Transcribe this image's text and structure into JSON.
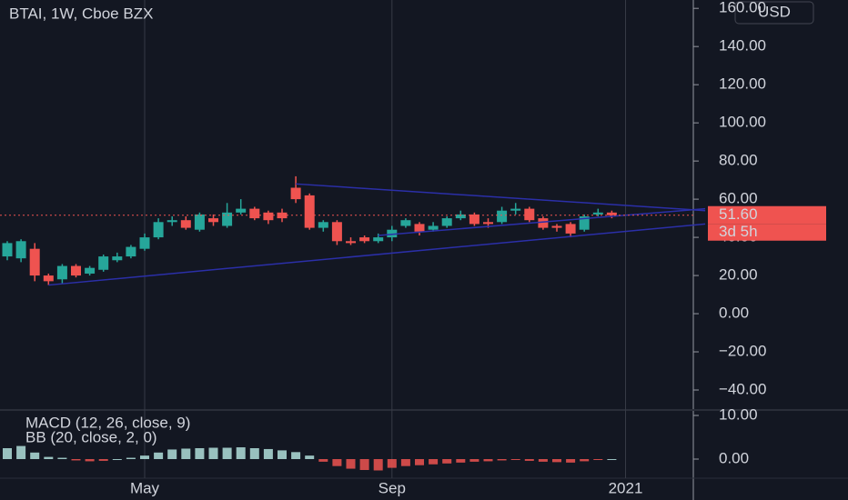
{
  "chart_data": {
    "type": "candlestick",
    "title": "BTAI, 1W, Cboe BZX",
    "currency_button": "USD",
    "up_color": "#26a69a",
    "down_color": "#ef5350",
    "categories": [
      null,
      null,
      null,
      null,
      null,
      null,
      null,
      null,
      null,
      null,
      null,
      null,
      null,
      null,
      null,
      null,
      null,
      null,
      null,
      null,
      null,
      null,
      null,
      null,
      null,
      null,
      null,
      null,
      null,
      null,
      null,
      null,
      null,
      null,
      null,
      null,
      null,
      null,
      null,
      null,
      null,
      null,
      null,
      null,
      null
    ],
    "open": [
      30,
      29,
      34,
      20,
      18,
      25,
      21,
      23,
      28,
      30,
      34,
      40,
      48,
      49,
      44,
      50,
      46,
      53,
      55,
      53,
      53,
      66,
      62,
      45,
      48,
      38,
      40,
      38,
      40,
      46,
      47,
      44,
      46,
      50,
      52,
      48,
      48,
      54,
      55,
      50,
      46,
      47,
      44,
      52,
      53
    ],
    "high": [
      38,
      39,
      37,
      21,
      26,
      26,
      25,
      31,
      32,
      36,
      42,
      50,
      51,
      51,
      53,
      52,
      58,
      60,
      56,
      54,
      55,
      72,
      63,
      49,
      49,
      40,
      41,
      42,
      46,
      50,
      48,
      48,
      51,
      54,
      53,
      50,
      56,
      58,
      56,
      51,
      47,
      48,
      52,
      55,
      54
    ],
    "low": [
      28,
      27,
      17,
      15,
      16,
      19,
      20,
      22,
      27,
      29,
      33,
      39,
      46,
      44,
      43,
      46,
      45,
      52,
      49,
      47,
      48,
      58,
      44,
      43,
      36,
      36,
      37,
      37,
      38,
      45,
      41,
      43,
      45,
      49,
      46,
      45,
      47,
      52,
      48,
      44,
      43,
      40,
      43,
      51,
      50
    ],
    "close": [
      37,
      38,
      20,
      17,
      25,
      20,
      24,
      30,
      30,
      35,
      40,
      48,
      49,
      45,
      52,
      48,
      53,
      55,
      50,
      49,
      50,
      60,
      45,
      48,
      38,
      37,
      38,
      40,
      44,
      49,
      43,
      46,
      50,
      52,
      47,
      47,
      54,
      55,
      49,
      45,
      45,
      42,
      51,
      53,
      51.6
    ],
    "ylim": [
      -50,
      162
    ],
    "yticks": [
      {
        "value": 160,
        "label": "160.00"
      },
      {
        "value": 140,
        "label": "140.00"
      },
      {
        "value": 120,
        "label": "120.00"
      },
      {
        "value": 100,
        "label": "100.00"
      },
      {
        "value": 80,
        "label": "80.00"
      },
      {
        "value": 60,
        "label": "60.00"
      },
      {
        "value": 40,
        "label": "40.00"
      },
      {
        "value": 20,
        "label": "20.00"
      },
      {
        "value": 0,
        "label": "0.00"
      },
      {
        "value": -20,
        "label": "−20.00"
      },
      {
        "value": -40,
        "label": "−40.00"
      }
    ],
    "xticks": [
      {
        "value": 10,
        "label": "May"
      },
      {
        "value": 28,
        "label": "Sep"
      },
      {
        "value": 45,
        "label": "2021"
      }
    ],
    "last_price": {
      "value": 51.6,
      "label": "51.60"
    },
    "countdown": "3d 5h",
    "trendline_color": "#2b2fa8",
    "trendlines": [
      {
        "x": [
          3,
          50.8
        ],
        "y": [
          15,
          47
        ]
      },
      {
        "x": [
          21,
          50.8
        ],
        "y": [
          68,
          54
        ]
      },
      {
        "x": [
          27,
          50.8
        ],
        "y": [
          41,
          55
        ]
      }
    ],
    "macd": {
      "label": "MACD (12, 26, close, 9)",
      "bb_label": "BB (20, close, 2, 0)",
      "ylim": [
        -3,
        11
      ],
      "yticks": [
        {
          "value": 10,
          "label": "10.00"
        },
        {
          "value": 0,
          "label": "0.00"
        }
      ],
      "pos_color": "#b2dfdb",
      "neg_color": "#ef5350",
      "histogram": [
        2.5,
        3,
        1.5,
        0.5,
        0.3,
        -0.3,
        -0.5,
        -0.4,
        0,
        0.3,
        0.8,
        1.5,
        2.2,
        2.4,
        2.5,
        2.6,
        2.6,
        2.7,
        2.5,
        2.3,
        2,
        1.6,
        0.8,
        -0.6,
        -1.6,
        -2.2,
        -2.5,
        -2.6,
        -2,
        -1.6,
        -1.4,
        -1.2,
        -1,
        -0.8,
        -0.6,
        -0.5,
        -0.3,
        -0.2,
        -0.4,
        -0.6,
        -0.7,
        -0.8,
        -0.5,
        -0.2,
        0
      ]
    }
  }
}
